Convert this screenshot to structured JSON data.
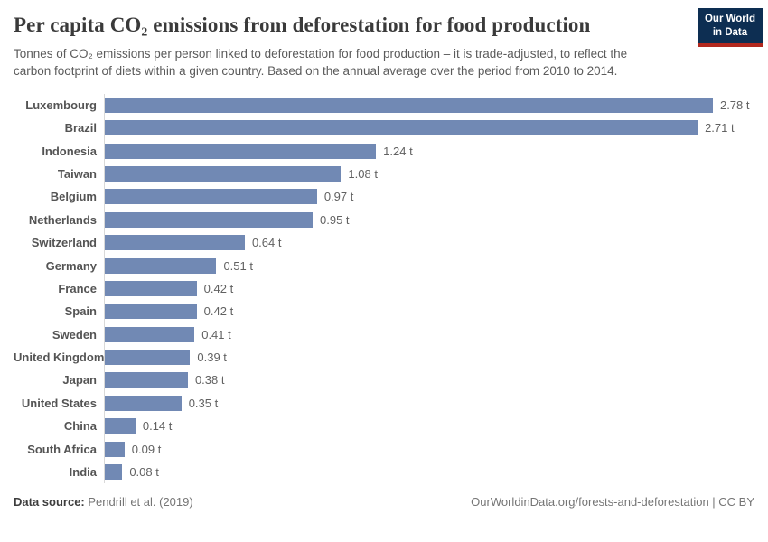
{
  "header": {
    "title": "Per capita CO₂ emissions from deforestation for food production",
    "subtitle": "Tonnes of CO₂ emissions per person linked to deforestation for food production – it is trade-adjusted, to reflect the carbon footprint of diets within a given country. Based on the annual average over the period from 2010 to 2014.",
    "logo": {
      "line1": "Our World",
      "line2": "in Data",
      "bg_color": "#0d2e52",
      "accent_color": "#b2281e"
    }
  },
  "chart_data": {
    "type": "bar",
    "orientation": "horizontal",
    "title": "Per capita CO₂ emissions from deforestation for food production",
    "unit": "t",
    "grid": false,
    "legend": "none",
    "xlim": [
      0,
      2.97
    ],
    "bar_color": "#7189b4",
    "categories": [
      "Luxembourg",
      "Brazil",
      "Indonesia",
      "Taiwan",
      "Belgium",
      "Netherlands",
      "Switzerland",
      "Germany",
      "France",
      "Spain",
      "Sweden",
      "United Kingdom",
      "Japan",
      "United States",
      "China",
      "South Africa",
      "India"
    ],
    "values": [
      2.78,
      2.71,
      1.24,
      1.08,
      0.97,
      0.95,
      0.64,
      0.51,
      0.42,
      0.42,
      0.41,
      0.39,
      0.38,
      0.35,
      0.14,
      0.09,
      0.08
    ],
    "value_labels": [
      "2.78 t",
      "2.71 t",
      "1.24 t",
      "1.08 t",
      "0.97 t",
      "0.95 t",
      "0.64 t",
      "0.51 t",
      "0.42 t",
      "0.42 t",
      "0.41 t",
      "0.39 t",
      "0.38 t",
      "0.35 t",
      "0.14 t",
      "0.09 t",
      "0.08 t"
    ]
  },
  "footer": {
    "source_label": "Data source:",
    "source_value": " Pendrill et al. (2019)",
    "link": "OurWorldinData.org/forests-and-deforestation | CC BY"
  }
}
